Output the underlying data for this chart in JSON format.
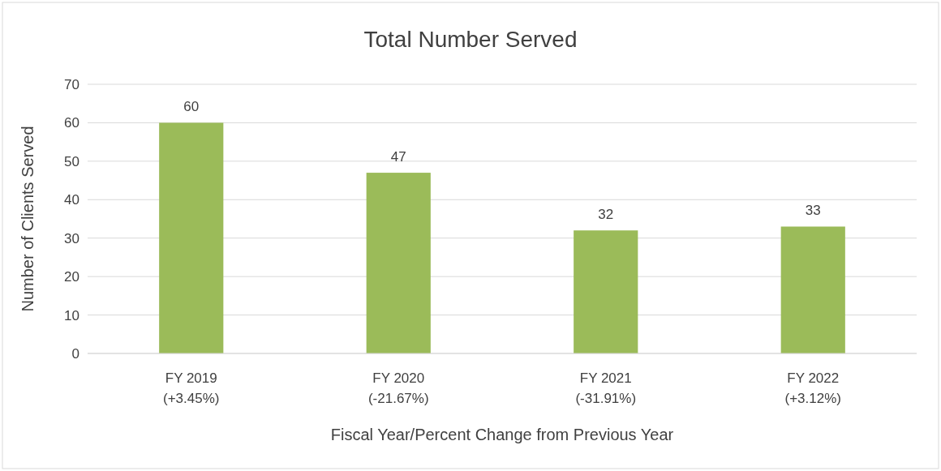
{
  "chart_data": {
    "type": "bar",
    "title": "Total Number Served",
    "xlabel": "Fiscal Year/Percent Change from Previous Year",
    "ylabel": "Number of Clients Served",
    "categories": [
      "FY 2019\n(+3.45%)",
      "FY 2020\n(-21.67%)",
      "FY 2021\n(-31.91%)",
      "FY 2022\n(+3.12%)"
    ],
    "values": [
      60,
      47,
      32,
      33
    ],
    "color": "#9bbb59",
    "ylim": [
      0,
      70
    ],
    "yticks": [
      0,
      10,
      20,
      30,
      40,
      50,
      60,
      70
    ],
    "grid": "y",
    "data_labels": true
  }
}
